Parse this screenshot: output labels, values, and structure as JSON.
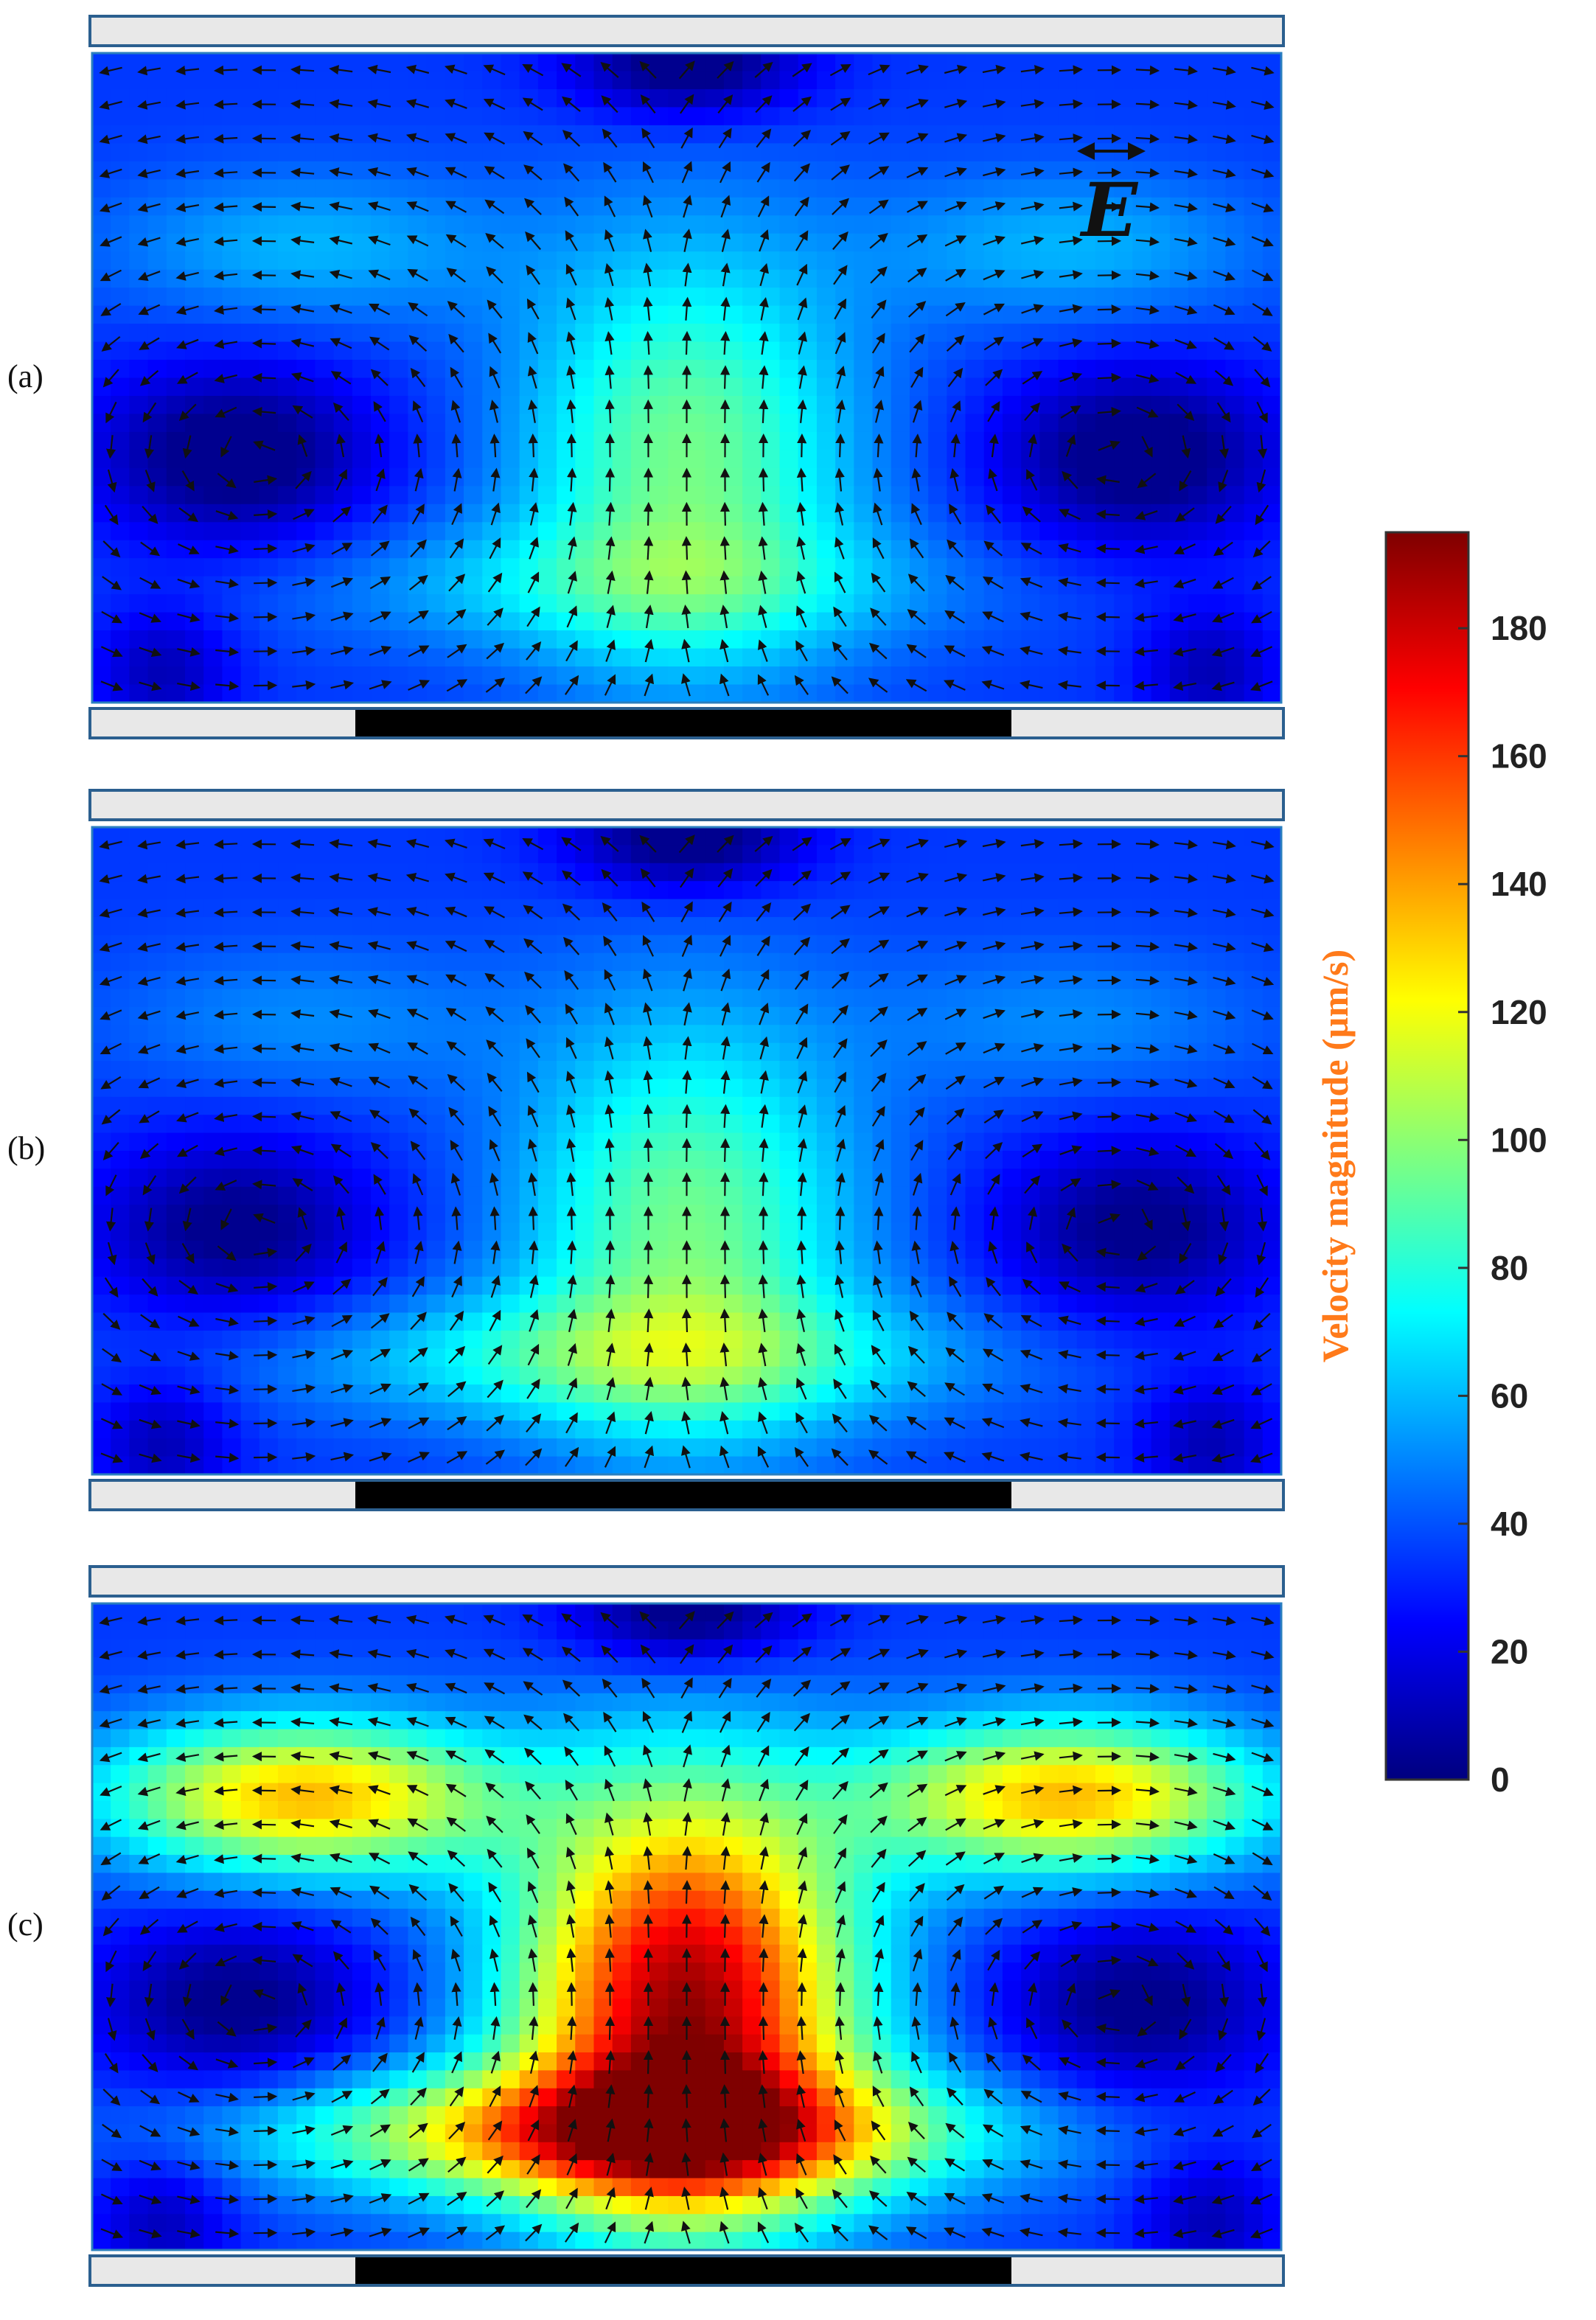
{
  "chart_data": {
    "type": "heatmap",
    "description_units": "velocity magnitude (µm/s) with flow direction arrows",
    "colorbar": {
      "label": "Velocity magnitude (µm/s)",
      "min": 0,
      "max": 195,
      "ticks": [
        0,
        20,
        40,
        60,
        80,
        100,
        120,
        140,
        160,
        180
      ],
      "colormap": [
        "#00007f",
        "#0000ff",
        "#007fff",
        "#00ffff",
        "#7fff7f",
        "#ffff00",
        "#ff7f00",
        "#ff0000",
        "#7f0000"
      ]
    },
    "field_annotation": "E",
    "panels": [
      {
        "label": "(a)",
        "peak_velocity": 95,
        "vortex_left_velocity": 15,
        "vortex_right_velocity": 15,
        "top_center_velocity": 20,
        "upper_band_velocity": 65,
        "bottom_band_velocity": 70
      },
      {
        "label": "(b)",
        "peak_velocity": 95,
        "vortex_left_velocity": 20,
        "vortex_right_velocity": 20,
        "top_center_velocity": 15,
        "upper_band_velocity": 55,
        "bottom_band_velocity": 90
      },
      {
        "label": "(c)",
        "peak_velocity": 190,
        "vortex_left_velocity": 20,
        "vortex_right_velocity": 20,
        "top_center_velocity": 20,
        "upper_band_velocity": 160,
        "bottom_band_velocity": 175
      }
    ]
  }
}
